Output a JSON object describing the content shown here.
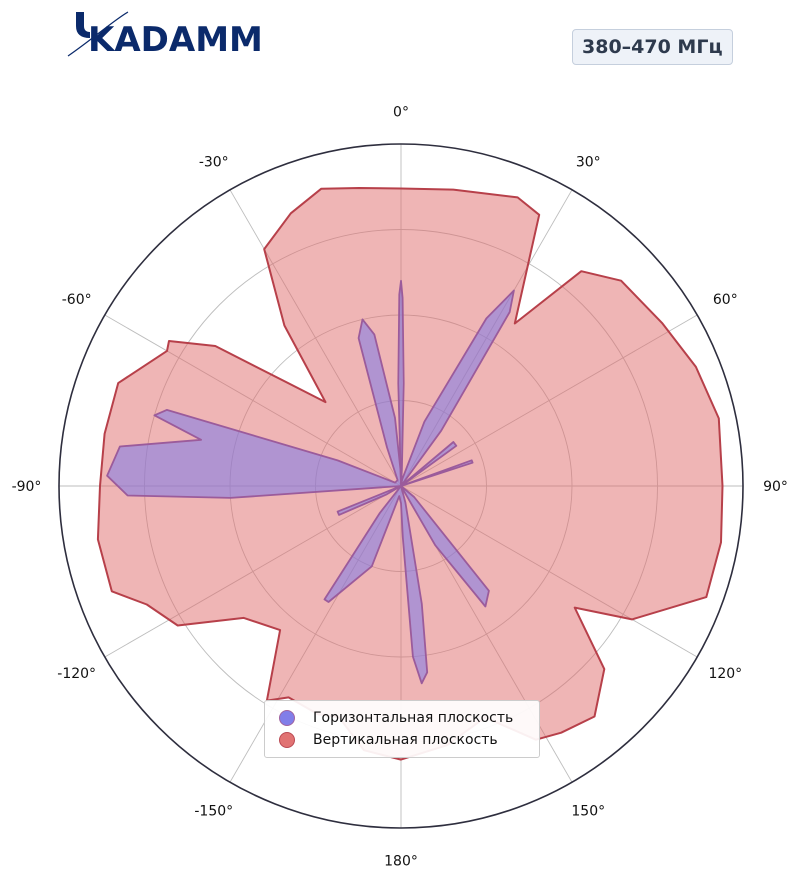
{
  "header": {
    "logo_text": "KADAMM",
    "band_label": "380–470 МГц"
  },
  "chart_data": {
    "type": "polar-area",
    "angular_ticks": [
      "0°",
      "30°",
      "60°",
      "90°",
      "120°",
      "150°",
      "180°",
      "-150°",
      "-120°",
      "-90°",
      "-60°",
      "-30°"
    ],
    "angular_tick_values": [
      0,
      30,
      60,
      90,
      120,
      150,
      180,
      -150,
      -120,
      -90,
      -60,
      -30
    ],
    "angle_zero": "top",
    "angle_direction": "clockwise",
    "r_range": [
      0,
      1
    ],
    "radial_gridlines": [
      0.25,
      0.5,
      0.75,
      1.0
    ],
    "grid": true,
    "legend_position": "bottom-center",
    "series": [
      {
        "name": "Горизонтальная плоскость",
        "color": "#7b78e8",
        "edge_color": "#9b5b9b",
        "points": [
          [
            0,
            0
          ],
          [
            -1.5,
            0.3
          ],
          [
            -0.5,
            0.56
          ],
          [
            0,
            0.6
          ],
          [
            0.5,
            0.55
          ],
          [
            1.5,
            0.3
          ],
          [
            3,
            0.05
          ],
          [
            4,
            0
          ],
          [
            10,
            0.02
          ],
          [
            20,
            0.2
          ],
          [
            27,
            0.55
          ],
          [
            30,
            0.66
          ],
          [
            32,
            0.6
          ],
          [
            36,
            0.2
          ],
          [
            40,
            0
          ],
          [
            42,
            0
          ],
          [
            50,
            0.2
          ],
          [
            54,
            0.2
          ],
          [
            58,
            0
          ],
          [
            64,
            0
          ],
          [
            70,
            0.22
          ],
          [
            72,
            0.22
          ],
          [
            75,
            0
          ],
          [
            90,
            0
          ],
          [
            130,
            0.05
          ],
          [
            140,
            0.4
          ],
          [
            145,
            0.43
          ],
          [
            150,
            0.2
          ],
          [
            160,
            0
          ],
          [
            165,
            0.05
          ],
          [
            170,
            0.35
          ],
          [
            172,
            0.55
          ],
          [
            174,
            0.58
          ],
          [
            176,
            0.5
          ],
          [
            178,
            0.15
          ],
          [
            180,
            0.05
          ],
          [
            190,
            0.03
          ],
          [
            200,
            0.25
          ],
          [
            212,
            0.4
          ],
          [
            214,
            0.4
          ],
          [
            218,
            0.1
          ],
          [
            225,
            0
          ],
          [
            240,
            0.05
          ],
          [
            245,
            0.2
          ],
          [
            248,
            0.2
          ],
          [
            252,
            0
          ],
          [
            260,
            0
          ],
          [
            266,
            0.5
          ],
          [
            268,
            0.8
          ],
          [
            272,
            0.86
          ],
          [
            278,
            0.83
          ],
          [
            283,
            0.6
          ],
          [
            286,
            0.75
          ],
          [
            288,
            0.72
          ],
          [
            292,
            0.2
          ],
          [
            300,
            0.02
          ],
          [
            330,
            0.02
          ],
          [
            340,
            0.12
          ],
          [
            344,
            0.45
          ],
          [
            347,
            0.5
          ],
          [
            350,
            0.45
          ],
          [
            355,
            0.2
          ],
          [
            358,
            0.05
          ],
          [
            360,
            0
          ]
        ]
      },
      {
        "name": "Вертикальная плоскость",
        "color": "#e06c6c",
        "edge_color": "#b7404a",
        "points": [
          [
            0,
            0.87
          ],
          [
            10,
            0.88
          ],
          [
            22,
            0.91
          ],
          [
            27,
            0.89
          ],
          [
            35,
            0.58
          ],
          [
            40,
            0.82
          ],
          [
            47,
            0.88
          ],
          [
            58,
            0.9
          ],
          [
            68,
            0.93
          ],
          [
            78,
            0.95
          ],
          [
            90,
            0.94
          ],
          [
            100,
            0.95
          ],
          [
            110,
            0.95
          ],
          [
            120,
            0.78
          ],
          [
            125,
            0.62
          ],
          [
            132,
            0.8
          ],
          [
            140,
            0.88
          ],
          [
            147,
            0.86
          ],
          [
            152,
            0.84
          ],
          [
            160,
            0.72
          ],
          [
            170,
            0.77
          ],
          [
            180,
            0.8
          ],
          [
            188,
            0.78
          ],
          [
            195,
            0.7
          ],
          [
            200,
            0.71
          ],
          [
            208,
            0.7
          ],
          [
            212,
            0.74
          ],
          [
            220,
            0.55
          ],
          [
            230,
            0.6
          ],
          [
            238,
            0.77
          ],
          [
            245,
            0.82
          ],
          [
            250,
            0.9
          ],
          [
            260,
            0.9
          ],
          [
            270,
            0.88
          ],
          [
            280,
            0.88
          ],
          [
            290,
            0.88
          ],
          [
            300,
            0.79
          ],
          [
            302,
            0.8
          ],
          [
            307,
            0.68
          ],
          [
            318,
            0.33
          ],
          [
            324,
            0.58
          ],
          [
            330,
            0.8
          ],
          [
            338,
            0.86
          ],
          [
            345,
            0.9
          ],
          [
            352,
            0.88
          ],
          [
            360,
            0.87
          ]
        ]
      }
    ]
  }
}
